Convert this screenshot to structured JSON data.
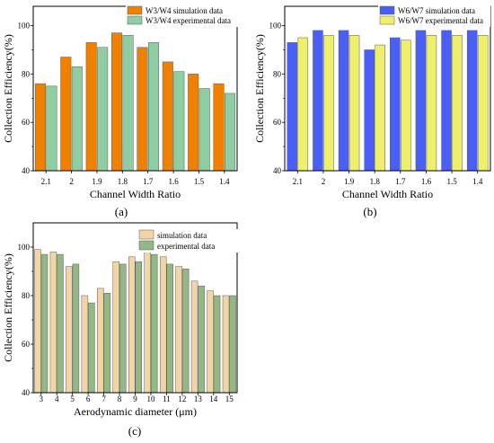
{
  "panel_labels": {
    "a": "(a)",
    "b": "(b)",
    "c": "(c)"
  },
  "chart_data": [
    {
      "id": "a",
      "type": "bar",
      "categories": [
        "2.1",
        "2",
        "1.9",
        "1.8",
        "1.7",
        "1.6",
        "1.5",
        "1.4"
      ],
      "series": [
        {
          "name": "W3/W4 simulation data",
          "color": "#f08000",
          "values": [
            76,
            87,
            93,
            97,
            91,
            85,
            80,
            76
          ]
        },
        {
          "name": "W3/W4 experimental data",
          "color": "#8fcea2",
          "values": [
            75,
            83,
            91,
            96,
            93,
            81,
            74,
            72
          ]
        }
      ],
      "xlabel": "Channel Width Ratio",
      "ylabel": "Collection Efficiency(%)",
      "ylim": [
        40,
        108
      ],
      "yticks": [
        40,
        60,
        80,
        100
      ],
      "legend": "top-center"
    },
    {
      "id": "b",
      "type": "bar",
      "categories": [
        "2.1",
        "2",
        "1.9",
        "1.8",
        "1.7",
        "1.6",
        "1.5",
        "1.4"
      ],
      "series": [
        {
          "name": "W6/W7 simulation data",
          "color": "#4a5ff5",
          "values": [
            93,
            98,
            98,
            90,
            95,
            98,
            98,
            98
          ]
        },
        {
          "name": "W6/W7 experimental data",
          "color": "#efef6e",
          "values": [
            95,
            96,
            96,
            92,
            94,
            96,
            96,
            96
          ]
        }
      ],
      "xlabel": "Channel Width Ratio",
      "ylabel": "Collection Efficiency(%)",
      "ylim": [
        40,
        108
      ],
      "yticks": [
        40,
        60,
        80,
        100
      ],
      "legend": "top-center"
    },
    {
      "id": "c",
      "type": "bar",
      "categories": [
        "3",
        "4",
        "5",
        "6",
        "7",
        "8",
        "9",
        "10",
        "11",
        "12",
        "13",
        "14",
        "15"
      ],
      "series": [
        {
          "name": "simulation data",
          "color": "#f2d5a6",
          "values": [
            99,
            98,
            92,
            80,
            83,
            94,
            96,
            98,
            96,
            92,
            86,
            82,
            80
          ]
        },
        {
          "name": "experimental data",
          "color": "#93b886",
          "values": [
            97,
            97,
            93,
            77,
            81,
            93,
            94,
            97,
            93,
            91,
            84,
            80,
            80
          ]
        }
      ],
      "xlabel": "Aerodynamic diameter (μm)",
      "ylabel": "Collection Efficiency(%)",
      "ylim": [
        40,
        110
      ],
      "yticks": [
        40,
        60,
        80,
        100
      ],
      "legend": "top-center"
    }
  ]
}
